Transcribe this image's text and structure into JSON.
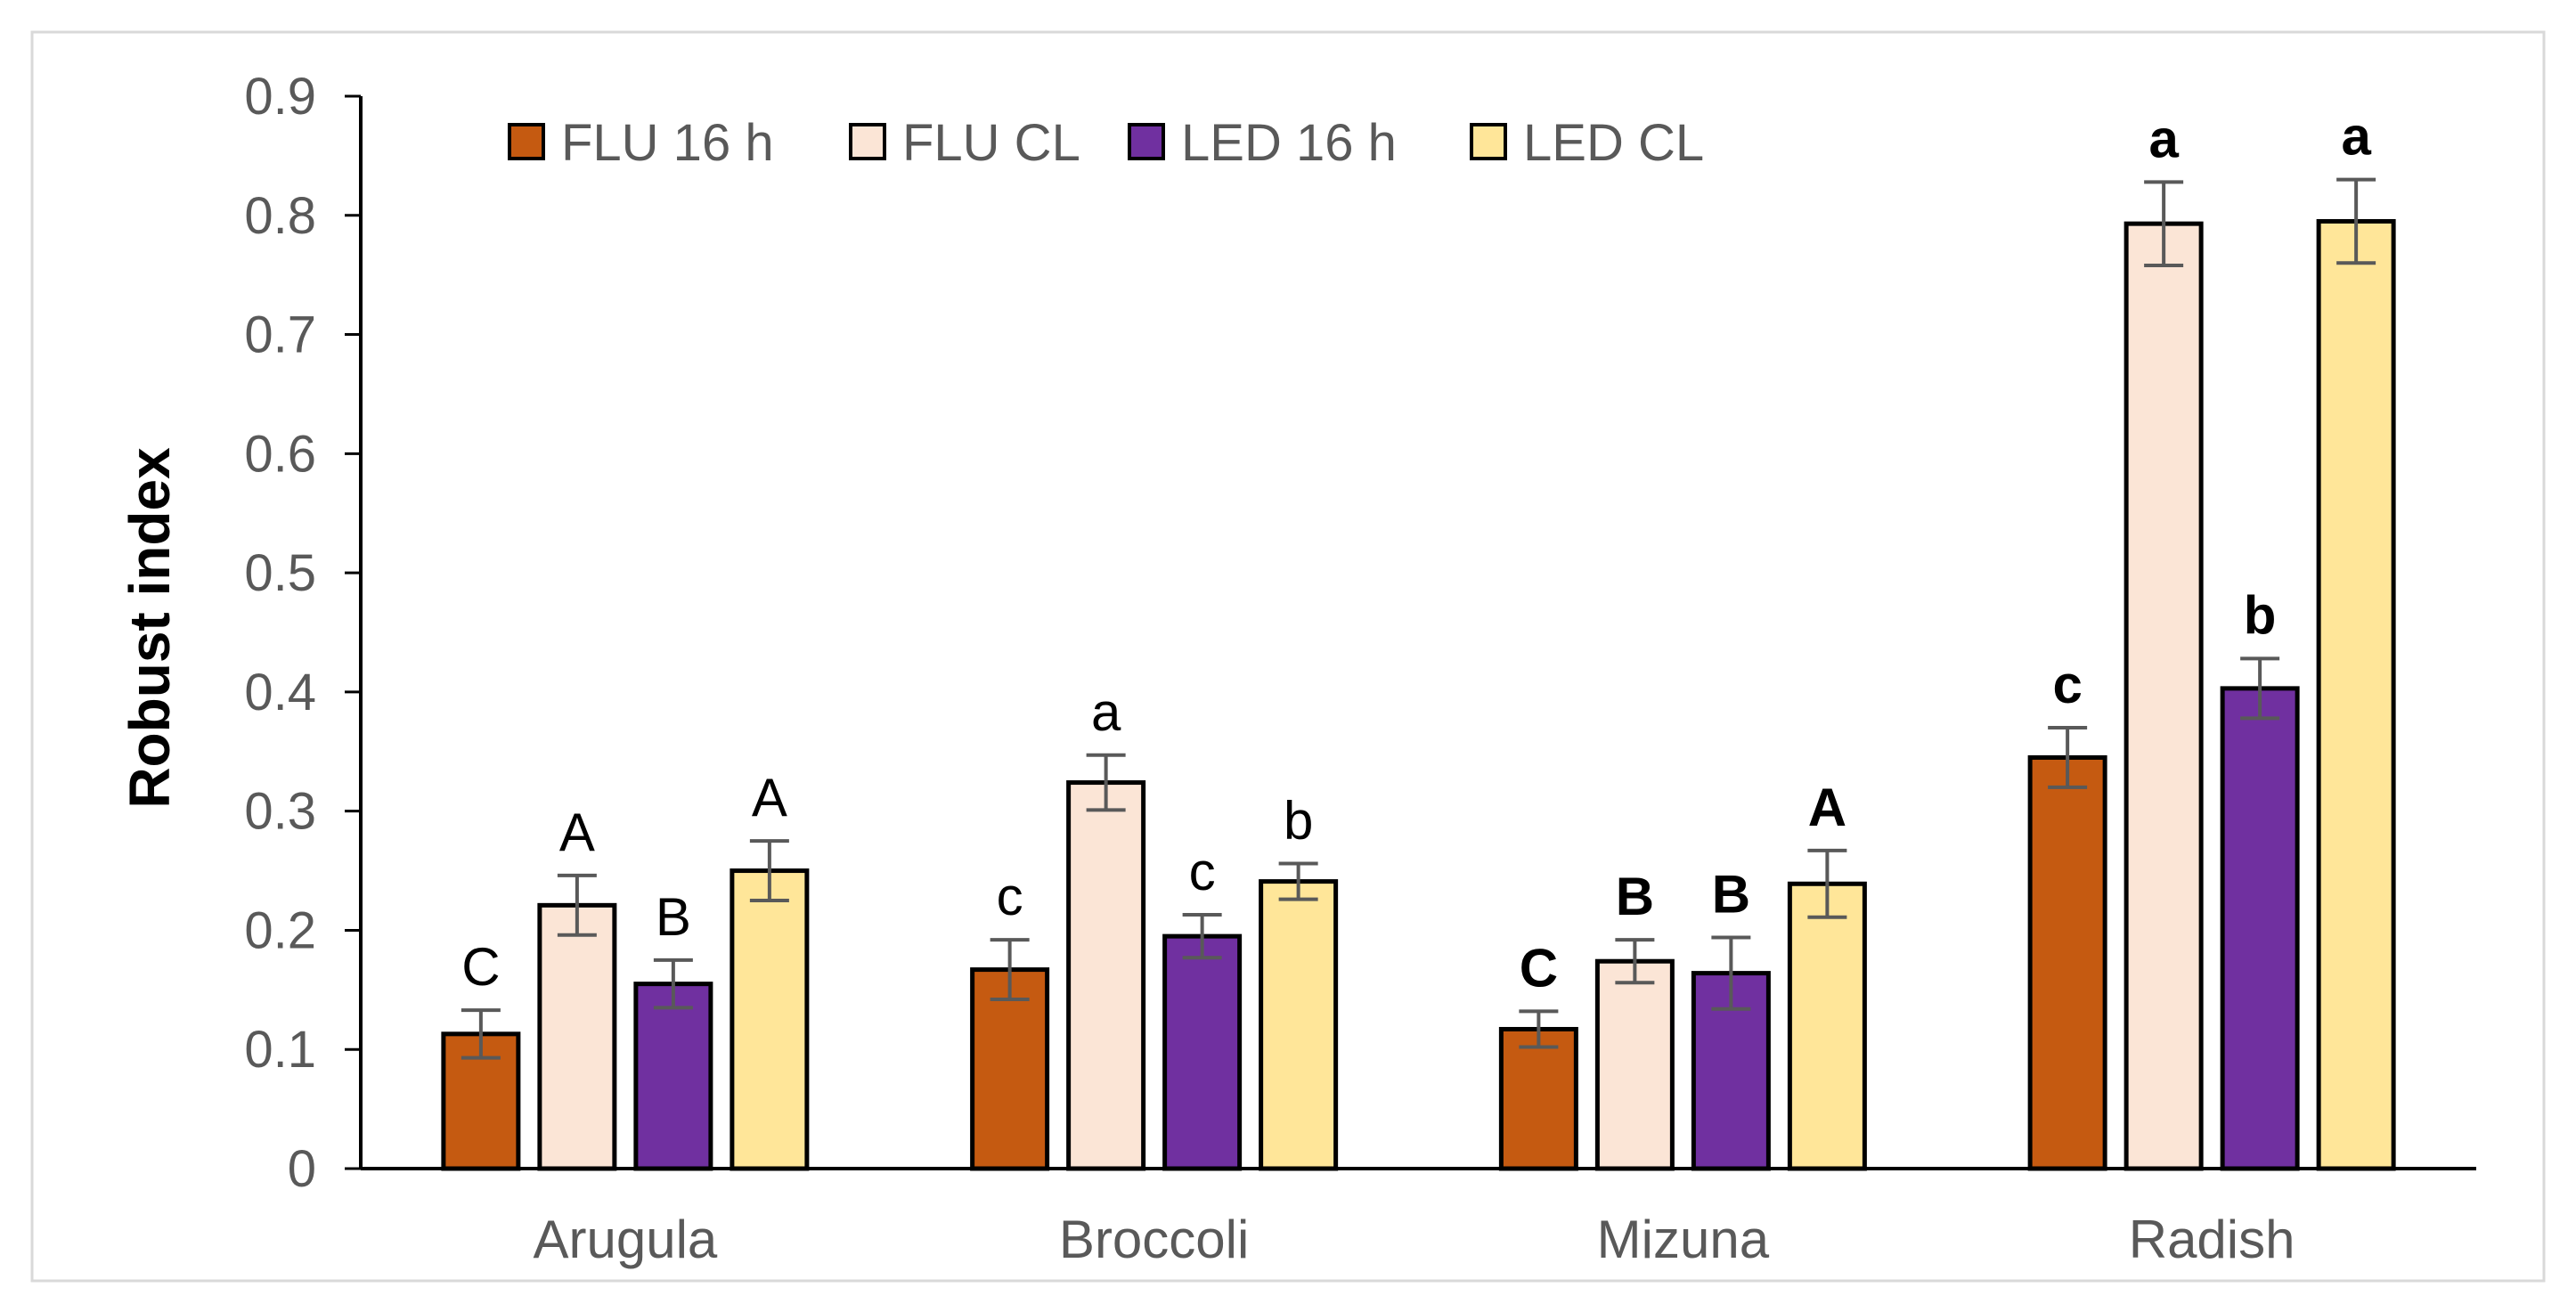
{
  "chart_data": {
    "type": "bar",
    "title": "",
    "xlabel": "",
    "ylabel": "Robust  index",
    "ylim": [
      0,
      0.9
    ],
    "yticks": [
      0,
      0.1,
      0.2,
      0.3,
      0.4,
      0.5,
      0.6,
      0.7,
      0.8,
      0.9
    ],
    "ytick_labels": [
      "0",
      "0.1",
      "0.2",
      "0.3",
      "0.4",
      "0.5",
      "0.6",
      "0.7",
      "0.8",
      "0.9"
    ],
    "grid": false,
    "legend_position": "top-left",
    "categories": [
      "Arugula",
      "Broccoli",
      "Mizuna",
      "Radish"
    ],
    "series": [
      {
        "name": "FLU 16 h",
        "color": "#c55a11",
        "values": [
          0.113,
          0.167,
          0.117,
          0.345
        ],
        "errors": [
          0.02,
          0.025,
          0.015,
          0.025
        ],
        "letters": [
          "C",
          "c",
          "C",
          "c"
        ]
      },
      {
        "name": "FLU CL",
        "color": "#fbe5d6",
        "values": [
          0.221,
          0.324,
          0.174,
          0.793
        ],
        "errors": [
          0.025,
          0.023,
          0.018,
          0.035
        ],
        "letters": [
          "A",
          "a",
          "B",
          "a"
        ]
      },
      {
        "name": "LED 16 h",
        "color": "#7030a0",
        "values": [
          0.155,
          0.195,
          0.164,
          0.403
        ],
        "errors": [
          0.02,
          0.018,
          0.03,
          0.025
        ],
        "letters": [
          "B",
          "c",
          "B",
          "b"
        ]
      },
      {
        "name": "LED CL",
        "color": "#ffe699",
        "values": [
          0.25,
          0.241,
          0.239,
          0.795
        ],
        "errors": [
          0.025,
          0.015,
          0.028,
          0.035
        ],
        "letters": [
          "A",
          "b",
          "A",
          "a"
        ]
      }
    ],
    "letter_bold_by_category": [
      false,
      false,
      true,
      true
    ]
  }
}
